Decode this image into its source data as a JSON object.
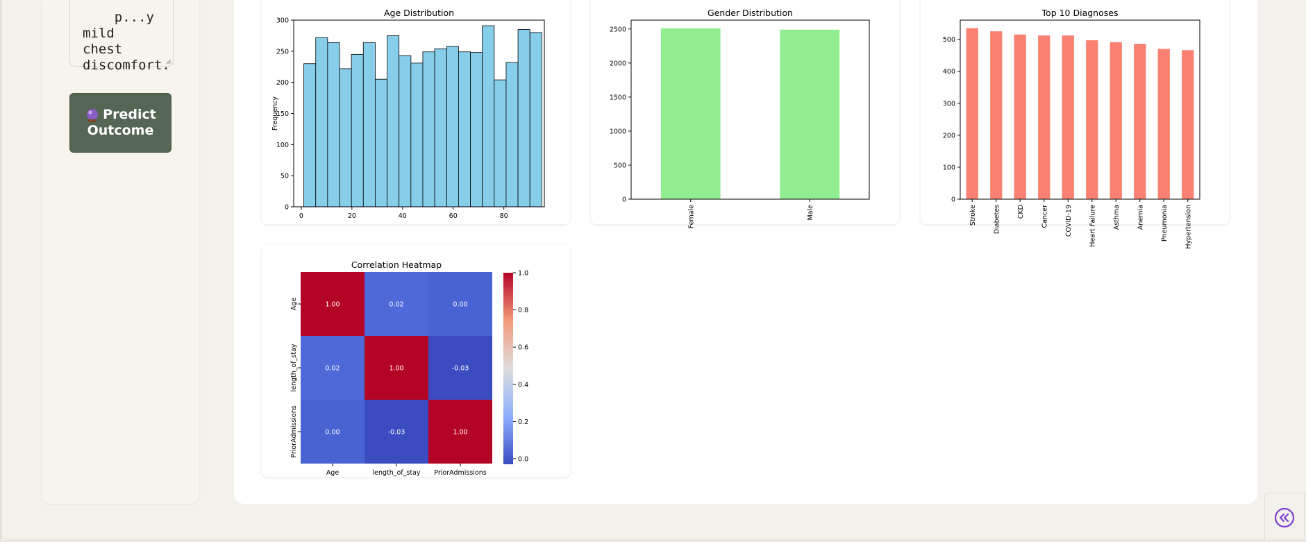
{
  "sidebar": {
    "symptoms_text": "p...y\nmild chest\ndiscomfort.",
    "predict_button": {
      "icon": "crystal-ball-icon",
      "line1": "Predict",
      "line2": "Outcome"
    }
  },
  "collapse_button": {
    "icon": "chevrons-left-icon"
  },
  "chart_data": [
    {
      "type": "bar",
      "title": "Age Distribution",
      "xlabel": "",
      "ylabel": "Frequency",
      "xlim": [
        -3,
        96
      ],
      "ylim": [
        0,
        300
      ],
      "xticks": [
        0,
        20,
        40,
        60,
        80
      ],
      "yticks": [
        0,
        50,
        100,
        150,
        200,
        250,
        300
      ],
      "bin_edges": [
        1,
        5.7,
        10.4,
        15.1,
        19.8,
        24.5,
        29.2,
        33.9,
        38.6,
        43.3,
        48,
        52.7,
        57.4,
        62.1,
        66.8,
        71.5,
        76.2,
        80.9,
        85.6,
        90.3,
        95
      ],
      "values": [
        230,
        272,
        264,
        222,
        245,
        264,
        205,
        275,
        243,
        231,
        249,
        254,
        258,
        249,
        248,
        291,
        204,
        232,
        285,
        280
      ],
      "color": "#87ceeb"
    },
    {
      "type": "bar",
      "title": "Gender Distribution",
      "xlabel": "",
      "ylabel": "",
      "categories": [
        "Female",
        "Male"
      ],
      "values": [
        2510,
        2490
      ],
      "ylim": [
        0,
        2630
      ],
      "yticks": [
        0,
        500,
        1000,
        1500,
        2000,
        2500
      ],
      "color": "#90ee90"
    },
    {
      "type": "bar",
      "title": "Top 10 Diagnoses",
      "xlabel": "",
      "ylabel": "",
      "categories": [
        "Stroke",
        "Diabetes",
        "CKD",
        "Cancer",
        "COVID-19",
        "Heart Failure",
        "Asthma",
        "Anemia",
        "Pneumonia",
        "Hypertension"
      ],
      "values": [
        535,
        525,
        515,
        512,
        512,
        497,
        491,
        486,
        470,
        466
      ],
      "ylim": [
        0,
        560
      ],
      "yticks": [
        0,
        100,
        200,
        300,
        400,
        500
      ],
      "color": "#fa8072"
    },
    {
      "type": "heatmap",
      "title": "Correlation Heatmap",
      "labels": [
        "Age",
        "length_of_stay",
        "PriorAdmissions"
      ],
      "matrix": [
        [
          1.0,
          0.02,
          0.0
        ],
        [
          0.02,
          1.0,
          -0.03
        ],
        [
          0.0,
          -0.03,
          1.0
        ]
      ],
      "value_labels": [
        [
          "1.00",
          "0.02",
          "0.00"
        ],
        [
          "0.02",
          "1.00",
          "-0.03"
        ],
        [
          "0.00",
          "-0.03",
          "1.00"
        ]
      ],
      "colorbar_range": [
        -0.03,
        1.0
      ],
      "colorbar_ticks": [
        "0.0",
        "0.2",
        "0.4",
        "0.6",
        "0.8",
        "1.0"
      ],
      "colormap": "coolwarm",
      "colors": {
        "high": "#b40426",
        "low": "#3b4cc0",
        "zero": "#4a63d3",
        "near_zero": "#4f69d9"
      }
    }
  ]
}
